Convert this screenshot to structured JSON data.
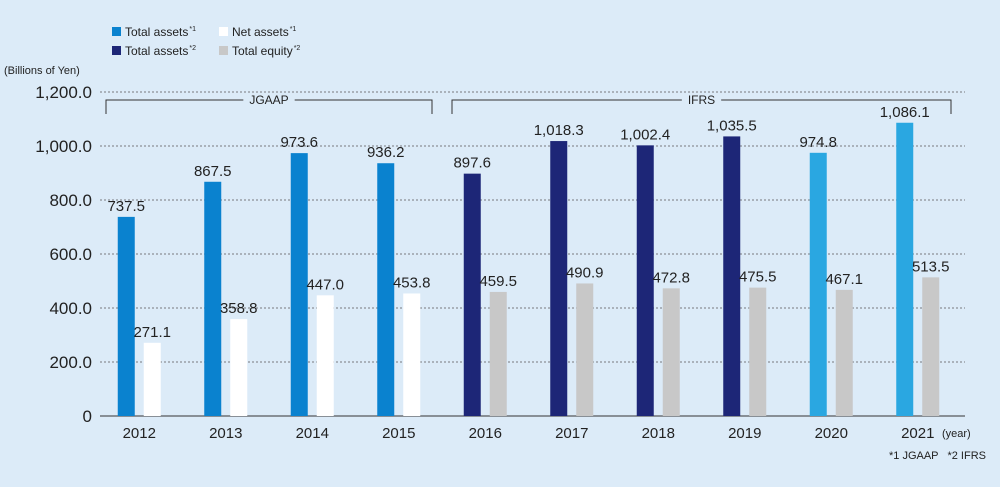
{
  "chart_data": {
    "type": "bar",
    "ylabel": "(Billions of Yen)",
    "xunit": "(year)",
    "ylim": [
      0,
      1200
    ],
    "yticks": [
      0,
      200,
      400,
      600,
      800,
      1000,
      1200
    ],
    "ytick_labels": [
      "0",
      "200.0",
      "400.0",
      "600.0",
      "800.0",
      "1,000.0",
      "1,200.0"
    ],
    "categories": [
      "2012",
      "2013",
      "2014",
      "2015",
      "2016",
      "2017",
      "2018",
      "2019",
      "2020",
      "2021"
    ],
    "legend": [
      {
        "name": "Total assets",
        "sup": "*1",
        "color": "#0a82cf"
      },
      {
        "name": "Net assets",
        "sup": "*1",
        "color": "#ffffff"
      },
      {
        "name": "Total assets",
        "sup": "*2",
        "color": "#1d2677"
      },
      {
        "name": "Total equity",
        "sup": "*2",
        "color": "#c8c8c8"
      }
    ],
    "bars": [
      {
        "category": "2012",
        "assets": 737.5,
        "assets_label": "737.5",
        "equity": 271.1,
        "equity_label": "271.1",
        "assets_color": "#0a82cf",
        "equity_color": "#ffffff"
      },
      {
        "category": "2013",
        "assets": 867.5,
        "assets_label": "867.5",
        "equity": 358.8,
        "equity_label": "358.8",
        "assets_color": "#0a82cf",
        "equity_color": "#ffffff"
      },
      {
        "category": "2014",
        "assets": 973.6,
        "assets_label": "973.6",
        "equity": 447.0,
        "equity_label": "447.0",
        "assets_color": "#0a82cf",
        "equity_color": "#ffffff"
      },
      {
        "category": "2015",
        "assets": 936.2,
        "assets_label": "936.2",
        "equity": 453.8,
        "equity_label": "453.8",
        "assets_color": "#0a82cf",
        "equity_color": "#ffffff"
      },
      {
        "category": "2016",
        "assets": 897.6,
        "assets_label": "897.6",
        "equity": 459.5,
        "equity_label": "459.5",
        "assets_color": "#1d2677",
        "equity_color": "#c8c8c8"
      },
      {
        "category": "2017",
        "assets": 1018.3,
        "assets_label": "1,018.3",
        "equity": 490.9,
        "equity_label": "490.9",
        "assets_color": "#1d2677",
        "equity_color": "#c8c8c8"
      },
      {
        "category": "2018",
        "assets": 1002.4,
        "assets_label": "1,002.4",
        "equity": 472.8,
        "equity_label": "472.8",
        "assets_color": "#1d2677",
        "equity_color": "#c8c8c8"
      },
      {
        "category": "2019",
        "assets": 1035.5,
        "assets_label": "1,035.5",
        "equity": 475.5,
        "equity_label": "475.5",
        "assets_color": "#1d2677",
        "equity_color": "#c8c8c8"
      },
      {
        "category": "2020",
        "assets": 974.8,
        "assets_label": "974.8",
        "equity": 467.1,
        "equity_label": "467.1",
        "assets_color": "#2aa7e1",
        "equity_color": "#c8c8c8"
      },
      {
        "category": "2021",
        "assets": 1086.1,
        "assets_label": "1,086.1",
        "equity": 513.5,
        "equity_label": "513.5",
        "assets_color": "#2aa7e1",
        "equity_color": "#c8c8c8"
      }
    ],
    "groups": [
      {
        "label": "JGAAP",
        "from": "2012",
        "to": "2015"
      },
      {
        "label": "IFRS",
        "from": "2016",
        "to": "2021"
      }
    ],
    "grid": true,
    "legend_position": "top-left",
    "note": "*1 JGAAP   *2 IFRS"
  }
}
